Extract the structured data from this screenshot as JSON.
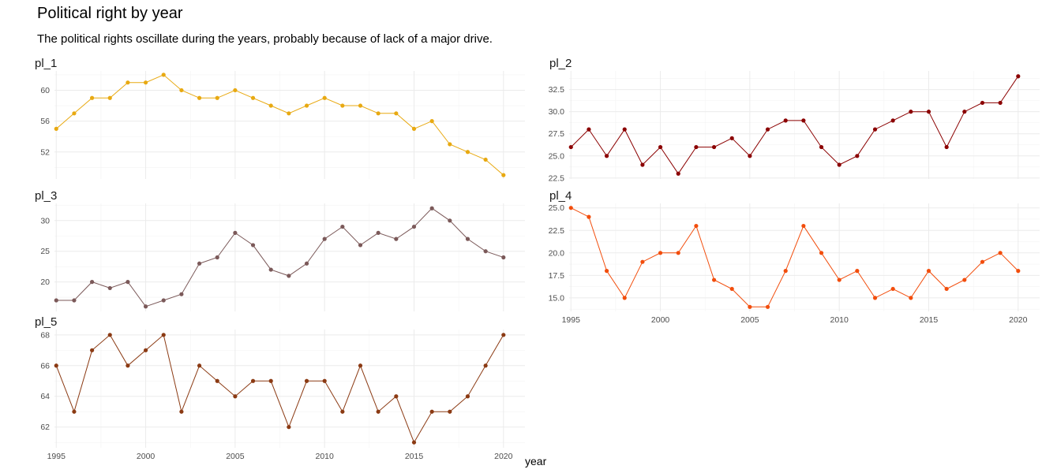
{
  "title": "Political right by year",
  "subtitle": "The political rights oscillate during the years, probably because of lack of a major drive.",
  "xlabel": "year",
  "chart_data": {
    "type": "line",
    "title": "Political right by year",
    "subtitle": "The political rights oscillate during the years, probably because of lack of a major drive.",
    "xlabel": "year",
    "ylabel": "",
    "x": [
      1995,
      1996,
      1997,
      1998,
      1999,
      2000,
      2001,
      2002,
      2003,
      2004,
      2005,
      2006,
      2007,
      2008,
      2009,
      2010,
      2011,
      2012,
      2013,
      2014,
      2015,
      2016,
      2017,
      2018,
      2019,
      2020
    ],
    "x_ticks": [
      1995,
      2000,
      2005,
      2010,
      2015,
      2020
    ],
    "xlim": [
      1994.9,
      2021.2
    ],
    "grid": true,
    "legend": "none",
    "panels": [
      {
        "name": "pl_1",
        "color": "#E8A911",
        "values": [
          55,
          57,
          59,
          59,
          61,
          61,
          62,
          60,
          59,
          59,
          60,
          59,
          58,
          57,
          58,
          59,
          58,
          58,
          57,
          57,
          55,
          56,
          53,
          52,
          51,
          49
        ],
        "ylim": [
          48.5,
          62.5
        ],
        "y_ticks": [
          52,
          56,
          60
        ],
        "y_tick_labels": [
          "52",
          "56",
          "60"
        ]
      },
      {
        "name": "pl_2",
        "color": "#8B0000",
        "values": [
          26,
          28,
          25,
          28,
          24,
          26,
          23,
          26,
          26,
          27,
          25,
          28,
          29,
          29,
          26,
          24,
          25,
          28,
          29,
          30,
          30,
          26,
          30,
          31,
          31,
          34
        ],
        "ylim": [
          22.4,
          34.6
        ],
        "y_ticks": [
          22.5,
          25,
          27.5,
          30,
          32.5
        ],
        "y_tick_labels": [
          "22.5",
          "25.0",
          "27.5",
          "30.0",
          "32.5"
        ]
      },
      {
        "name": "pl_3",
        "color": "#7B5959",
        "values": [
          17,
          17,
          20,
          19,
          20,
          16,
          17,
          18,
          23,
          24,
          28,
          26,
          22,
          21,
          23,
          27,
          29,
          26,
          28,
          27,
          29,
          32,
          30,
          27,
          25,
          24
        ],
        "ylim": [
          15.2,
          32.8
        ],
        "y_ticks": [
          20,
          25,
          30
        ],
        "y_tick_labels": [
          "20",
          "25",
          "30"
        ]
      },
      {
        "name": "pl_4",
        "color": "#F24D0C",
        "values": [
          25,
          24,
          18,
          15,
          19,
          20,
          20,
          23,
          17,
          16,
          14,
          14,
          18,
          23,
          20,
          17,
          18,
          15,
          16,
          15,
          18,
          16,
          17,
          19,
          20,
          18
        ],
        "ylim": [
          13.5,
          25.5
        ],
        "y_ticks": [
          15,
          17.5,
          20,
          22.5,
          25
        ],
        "y_tick_labels": [
          "15.0",
          "17.5",
          "20.0",
          "22.5",
          "25.0"
        ]
      },
      {
        "name": "pl_5",
        "color": "#8B3A13",
        "values": [
          66,
          63,
          67,
          68,
          66,
          67,
          68,
          63,
          66,
          65,
          64,
          65,
          65,
          62,
          65,
          65,
          63,
          66,
          63,
          64,
          61,
          63,
          63,
          64,
          66,
          68
        ],
        "ylim": [
          60.65,
          68.35
        ],
        "y_ticks": [
          62,
          64,
          66,
          68
        ],
        "y_tick_labels": [
          "62",
          "64",
          "66",
          "68"
        ]
      }
    ]
  }
}
